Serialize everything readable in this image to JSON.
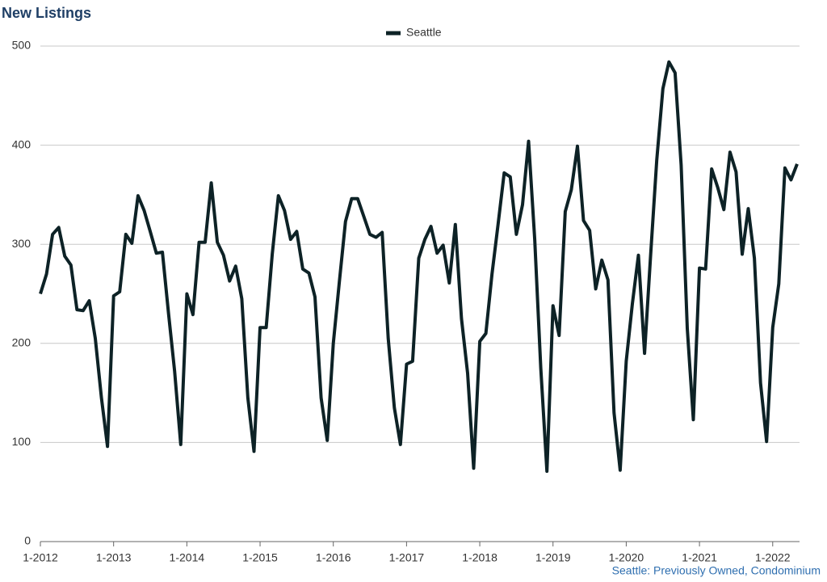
{
  "chart_data": {
    "type": "line",
    "title": "New Listings",
    "footnote": "Seattle: Previously Owned, Condominium",
    "legend": "top",
    "grid": true,
    "categories": [
      "1-2012",
      null,
      null,
      null,
      null,
      null,
      null,
      null,
      null,
      null,
      null,
      null,
      "1-2013",
      null,
      null,
      null,
      null,
      null,
      null,
      null,
      null,
      null,
      null,
      null,
      "1-2014",
      null,
      null,
      null,
      null,
      null,
      null,
      null,
      null,
      null,
      null,
      null,
      "1-2015",
      null,
      null,
      null,
      null,
      null,
      null,
      null,
      null,
      null,
      null,
      null,
      "1-2016",
      null,
      null,
      null,
      null,
      null,
      null,
      null,
      null,
      null,
      null,
      null,
      "1-2017",
      null,
      null,
      null,
      null,
      null,
      null,
      null,
      null,
      null,
      null,
      null,
      "1-2018",
      null,
      null,
      null,
      null,
      null,
      null,
      null,
      null,
      null,
      null,
      null,
      "1-2019",
      null,
      null,
      null,
      null,
      null,
      null,
      null,
      null,
      null,
      null,
      null,
      "1-2020",
      null,
      null,
      null,
      null,
      null,
      null,
      null,
      null,
      null,
      null,
      null,
      "1-2021",
      null,
      null,
      null,
      null,
      null,
      null,
      null,
      null,
      null,
      null,
      null,
      "1-2022",
      null,
      null,
      null,
      null
    ],
    "series": [
      {
        "name": "Seattle",
        "color": "#0d2226",
        "values": [
          250,
          270,
          310,
          317,
          288,
          279,
          234,
          233,
          243,
          205,
          145,
          96,
          248,
          252,
          310,
          301,
          349,
          334,
          313,
          291,
          292,
          230,
          172,
          98,
          250,
          229,
          302,
          302,
          362,
          302,
          289,
          263,
          278,
          245,
          145,
          91,
          216,
          216,
          290,
          349,
          334,
          305,
          313,
          275,
          271,
          247,
          145,
          102,
          200,
          263,
          323,
          346,
          346,
          328,
          310,
          307,
          312,
          205,
          135,
          98,
          179,
          182,
          286,
          305,
          318,
          291,
          299,
          261,
          320,
          225,
          170,
          74,
          202,
          210,
          270,
          320,
          372,
          368,
          310,
          340,
          404,
          305,
          175,
          71,
          238,
          208,
          333,
          355,
          399,
          324,
          314,
          255,
          284,
          264,
          130,
          72,
          182,
          240,
          289,
          190,
          289,
          385,
          457,
          484,
          473,
          380,
          215,
          123,
          276,
          275,
          376,
          357,
          335,
          393,
          373,
          290,
          336,
          286,
          160,
          101,
          216,
          260,
          377,
          365,
          381
        ]
      }
    ],
    "ylim": [
      0,
      500
    ],
    "yticks": [
      0,
      100,
      200,
      300,
      400,
      500
    ]
  }
}
